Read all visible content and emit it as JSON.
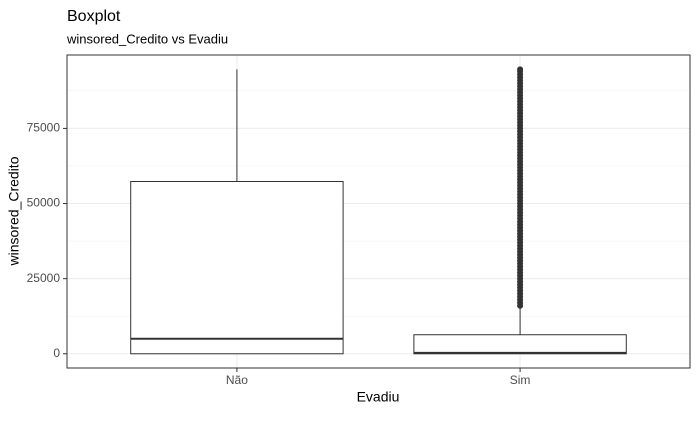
{
  "chart_data": {
    "type": "boxplot",
    "title": "Boxplot",
    "subtitle": "winsored_Credito vs Evadiu",
    "x_label": "Evadiu",
    "y_label": "winsored_Credito",
    "categories": [
      "Não",
      "Sim"
    ],
    "boxes": [
      {
        "min": 0,
        "q1": 0,
        "median": 5000,
        "q3": 57333,
        "max": 94667,
        "outliers": []
      },
      {
        "min": 0,
        "q1": 0,
        "median": 300,
        "q3": 6333,
        "max": 15667,
        "outliers": [
          16000,
          17000,
          18000,
          19000,
          20000,
          21000,
          22000,
          23000,
          24000,
          25000,
          26000,
          27000,
          28000,
          29000,
          30000,
          31000,
          32000,
          33000,
          34000,
          35000,
          36000,
          37000,
          38000,
          39000,
          40000,
          41000,
          42000,
          43000,
          44000,
          45000,
          46000,
          47000,
          48000,
          49000,
          50000,
          51000,
          52000,
          53000,
          54000,
          55000,
          56000,
          57000,
          58000,
          59000,
          60000,
          61000,
          62000,
          63000,
          64000,
          65000,
          66000,
          67000,
          68000,
          69000,
          70000,
          71000,
          72000,
          73000,
          74000,
          75000,
          76000,
          77000,
          78000,
          79000,
          80000,
          81000,
          82000,
          83000,
          84000,
          85000,
          86000,
          87000,
          88000,
          89000,
          90000,
          91000,
          92000,
          93000,
          94000,
          94667
        ]
      }
    ],
    "ylim": [
      -4735,
      99435
    ],
    "yticks": [
      0,
      25000,
      50000,
      75000
    ],
    "grid": true,
    "color": "#333333"
  }
}
